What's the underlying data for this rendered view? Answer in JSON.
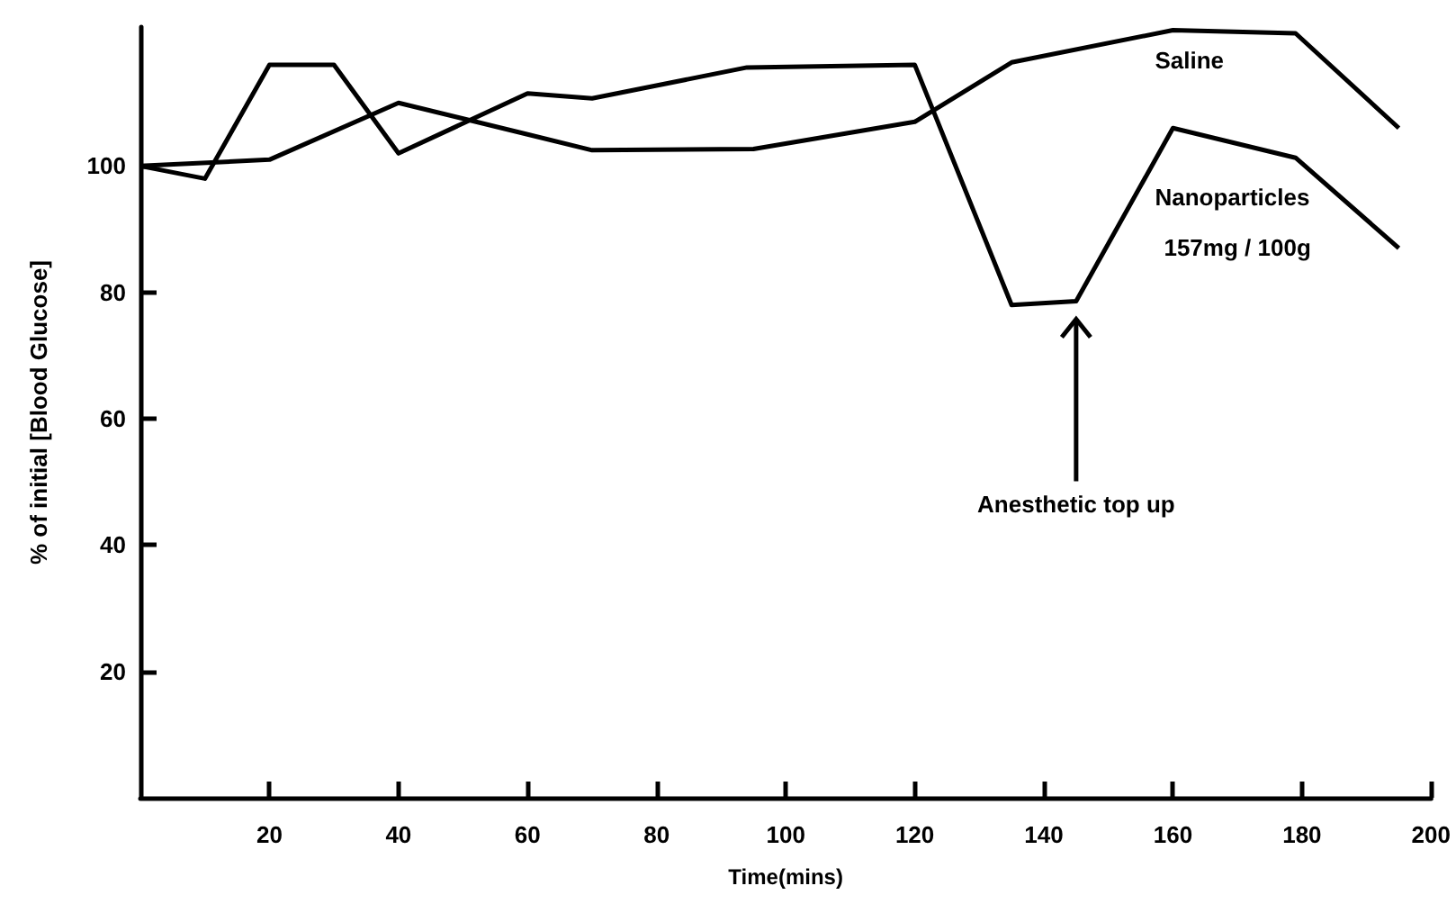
{
  "chart_data": {
    "type": "line",
    "xlabel": "Time(mins)",
    "ylabel": "% of initial [Blood Glucose]",
    "xlim": [
      0,
      200
    ],
    "xticks": [
      20,
      40,
      60,
      80,
      100,
      120,
      140,
      160,
      180,
      200
    ],
    "ylim": [
      0,
      122
    ],
    "yticks": [
      20,
      40,
      60,
      80,
      100
    ],
    "series": [
      {
        "name": "Saline",
        "color": "#000000",
        "x": [
          0,
          20,
          40,
          60,
          70,
          95,
          120,
          135,
          160,
          179,
          195
        ],
        "values": [
          100,
          101,
          110,
          105,
          102.5,
          102.7,
          107,
          116.4,
          121.5,
          121,
          106
        ]
      },
      {
        "name": "Nanoparticles",
        "color": "#000000",
        "x": [
          0,
          10,
          20,
          30,
          40,
          60,
          70,
          94,
          120,
          135,
          145,
          160,
          179,
          195
        ],
        "values": [
          100,
          98,
          116,
          116,
          102,
          111.5,
          110.7,
          115.6,
          116,
          78,
          78.6,
          106,
          101.3,
          87
        ]
      }
    ],
    "annotations": [
      "157mg / 100g",
      "Anesthetic top up"
    ],
    "grid": false,
    "legend": false,
    "marker": "none",
    "line_style": "solid"
  }
}
